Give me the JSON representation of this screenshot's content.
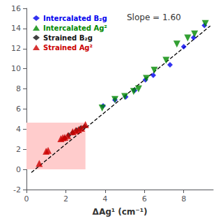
{
  "chart_data": {
    "type": "scatter",
    "title": "Slope = 1.60",
    "xlabel": "ΔAg¹ (cm⁻¹)",
    "xlim": [
      0,
      9.5
    ],
    "ylim": [
      -2,
      16
    ],
    "xticks": [
      0,
      2,
      4,
      6,
      8
    ],
    "yticks": [
      -2,
      0,
      2,
      4,
      6,
      8,
      10,
      12,
      14,
      16
    ],
    "grid": false,
    "legend": "upper left",
    "series": [
      {
        "name": "Intercalated B₂g",
        "color": "#0000ee",
        "marker": "diamond",
        "x": [
          3.9,
          4.5,
          5.05,
          5.5,
          6.05,
          6.45,
          7.3,
          8.0,
          8.5,
          9.05
        ],
        "values": [
          6.3,
          6.9,
          7.2,
          7.85,
          8.9,
          9.35,
          10.4,
          12.2,
          13.1,
          14.3
        ]
      },
      {
        "name": "Intercalated Ag²",
        "color": "#008800",
        "marker": "triangle_down",
        "x": [
          3.85,
          4.5,
          5.0,
          5.45,
          5.7,
          6.1,
          6.5,
          7.1,
          7.65,
          8.2,
          8.55,
          9.1
        ],
        "values": [
          6.1,
          6.95,
          7.25,
          7.75,
          8.0,
          9.05,
          9.85,
          10.85,
          12.45,
          13.05,
          13.45,
          14.5
        ]
      },
      {
        "name": "Strained B₂g",
        "color": "#111111",
        "marker": "diamond",
        "x": [
          1.95,
          2.15,
          2.35,
          2.55,
          2.75,
          2.95
        ],
        "values": [
          3.1,
          3.4,
          3.65,
          3.9,
          4.1,
          4.25
        ]
      },
      {
        "name": "Strained Ag²",
        "color": "#cc0000",
        "marker": "triangle",
        "x": [
          0.65,
          1.0,
          1.1,
          1.75,
          1.85,
          1.95,
          2.1,
          2.35,
          2.5,
          2.65,
          2.8,
          3.0
        ],
        "values": [
          0.6,
          1.8,
          1.9,
          3.05,
          3.15,
          3.2,
          3.35,
          3.75,
          3.85,
          3.95,
          4.1,
          4.45
        ]
      }
    ],
    "line": {
      "x": [
        0.25,
        9.35
      ],
      "values": [
        -0.3,
        14.26
      ],
      "color": "#000000",
      "line_style": "dashed"
    },
    "shaded_region": {
      "x": [
        0,
        3.0
      ],
      "y": [
        0,
        4.65
      ],
      "color": "#ffcccc"
    }
  }
}
